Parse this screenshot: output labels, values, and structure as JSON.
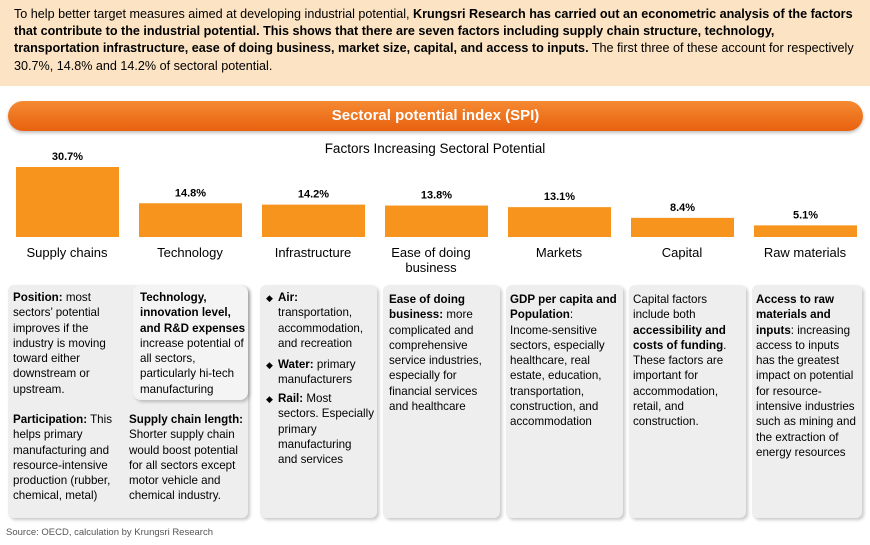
{
  "intro": {
    "p1": "To help better target measures aimed at developing industrial potential, ",
    "b1": "Krungsri Research has carried out an econometric analysis of the factors that contribute to the industrial potential. This shows that there are seven factors including supply chain structure, technology, transportation infrastructure, ease of doing business, market size, capital, and access to inputs.",
    "p2": " The first three of these account for respectively 30.7%, 14.8% and 14.2% of sectoral potential."
  },
  "banner": "Sectoral potential index (SPI)",
  "chart_data": {
    "type": "bar",
    "title": "Factors Increasing Sectoral Potential",
    "categories": [
      "Supply chains",
      "Technology",
      "Infrastructure",
      "Ease of doing business",
      "Markets",
      "Capital",
      "Raw materials"
    ],
    "values": [
      30.7,
      14.8,
      14.2,
      13.8,
      13.1,
      8.4,
      5.1
    ],
    "value_labels": [
      "30.7%",
      "14.8%",
      "14.2%",
      "13.8%",
      "13.1%",
      "8.4%",
      "5.1%"
    ],
    "unit": "%",
    "bar_color": "#f7941d",
    "grid": false,
    "legend": "none"
  },
  "details": {
    "supply_position_b": "Position:",
    "supply_position_t": " most sectors’ potential improves if the industry is moving toward either downstream or upstream.",
    "supply_tech_b": "Technology, innovation level, and R&D expenses",
    "supply_tech_t": " increase potential of all sectors, particularly hi-tech manufacturing",
    "supply_part_b": "Participation:",
    "supply_part_t": "  This helps primary manufacturing and resource-intensive production (rubber, chemical, metal)",
    "supply_len_b": "Supply chain length:",
    "supply_len_t": " Shorter supply chain would boost potential for all sectors except motor vehicle and chemical industry.",
    "infra_air_b": "Air:",
    "infra_air_t": " transportation, accommodation, and recreation",
    "infra_water_b": "Water:",
    "infra_water_t": " primary manufacturers",
    "infra_rail_b": "Rail:",
    "infra_rail_t": " Most sectors. Especially primary manufacturing and services",
    "ease_b": "Ease of doing business:",
    "ease_t": " more complicated and comprehensive service industries, especially for financial services and healthcare",
    "markets_b": "GDP per capita and Population",
    "markets_t": ": Income-sensitive sectors, especially healthcare, real estate, education, transportation, construction, and accommodation",
    "capital_t1": "Capital factors include both ",
    "capital_b": "accessibility and costs of funding",
    "capital_t2": ". These factors are important for accommodation, retail, and construction.",
    "raw_b": "Access to raw materials and inputs",
    "raw_t": ": increasing access to inputs has the greatest impact on potential for resource-intensive industries such as mining and the extraction of energy resources"
  },
  "source": "Source: OECD, calculation by Krungsri Research"
}
